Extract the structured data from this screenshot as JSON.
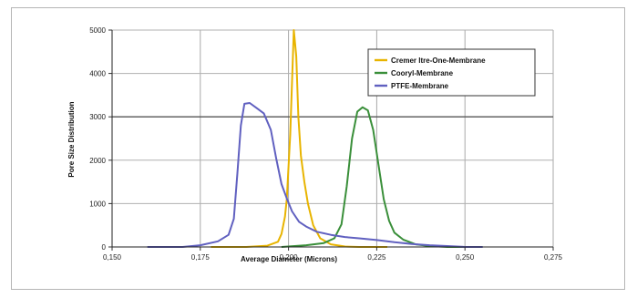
{
  "chart_data": {
    "type": "line",
    "xlabel": "Average Diameter (Microns)",
    "ylabel": "Pore Size Distribution",
    "xlim": [
      0.15,
      0.275
    ],
    "ylim": [
      0,
      5000
    ],
    "x_ticks": [
      "0,150",
      "0,175",
      "0,200",
      "0,225",
      "0,250",
      "0,275"
    ],
    "y_ticks": [
      "0",
      "1000",
      "2000",
      "3000",
      "4000",
      "5000"
    ],
    "grid": "vertical and horizontal gridlines",
    "legend_position": "top-right",
    "series": [
      {
        "name": "Cremer ltre-One-Membrane",
        "color": "#e8b400",
        "points": [
          [
            0.178,
            0
          ],
          [
            0.188,
            0
          ],
          [
            0.194,
            30
          ],
          [
            0.197,
            120
          ],
          [
            0.198,
            300
          ],
          [
            0.199,
            700
          ],
          [
            0.1995,
            1100
          ],
          [
            0.2005,
            2600
          ],
          [
            0.2015,
            5000
          ],
          [
            0.2022,
            4400
          ],
          [
            0.2028,
            3000
          ],
          [
            0.2035,
            2100
          ],
          [
            0.2045,
            1500
          ],
          [
            0.2055,
            1000
          ],
          [
            0.207,
            500
          ],
          [
            0.209,
            200
          ],
          [
            0.212,
            60
          ],
          [
            0.216,
            10
          ],
          [
            0.22,
            0
          ],
          [
            0.228,
            0
          ]
        ]
      },
      {
        "name": "Cooryl-Membrane",
        "color": "#3a8f3a",
        "points": [
          [
            0.198,
            0
          ],
          [
            0.205,
            40
          ],
          [
            0.21,
            90
          ],
          [
            0.213,
            200
          ],
          [
            0.215,
            520
          ],
          [
            0.2165,
            1400
          ],
          [
            0.218,
            2500
          ],
          [
            0.2195,
            3120
          ],
          [
            0.221,
            3220
          ],
          [
            0.2225,
            3150
          ],
          [
            0.224,
            2700
          ],
          [
            0.2255,
            1900
          ],
          [
            0.227,
            1100
          ],
          [
            0.2285,
            600
          ],
          [
            0.23,
            330
          ],
          [
            0.2325,
            170
          ],
          [
            0.236,
            60
          ],
          [
            0.24,
            20
          ],
          [
            0.245,
            0
          ],
          [
            0.255,
            0
          ]
        ]
      },
      {
        "name": "PTFE-Membrane",
        "color": "#6060c0",
        "points": [
          [
            0.16,
            0
          ],
          [
            0.17,
            0
          ],
          [
            0.175,
            40
          ],
          [
            0.18,
            130
          ],
          [
            0.183,
            280
          ],
          [
            0.1845,
            650
          ],
          [
            0.1855,
            1700
          ],
          [
            0.1865,
            2800
          ],
          [
            0.1875,
            3300
          ],
          [
            0.189,
            3320
          ],
          [
            0.191,
            3200
          ],
          [
            0.193,
            3080
          ],
          [
            0.195,
            2700
          ],
          [
            0.1965,
            2050
          ],
          [
            0.198,
            1450
          ],
          [
            0.1995,
            1120
          ],
          [
            0.201,
            820
          ],
          [
            0.203,
            580
          ],
          [
            0.205,
            470
          ],
          [
            0.208,
            350
          ],
          [
            0.212,
            280
          ],
          [
            0.216,
            230
          ],
          [
            0.22,
            200
          ],
          [
            0.225,
            160
          ],
          [
            0.23,
            110
          ],
          [
            0.235,
            70
          ],
          [
            0.24,
            40
          ],
          [
            0.245,
            20
          ],
          [
            0.25,
            0
          ],
          [
            0.255,
            0
          ]
        ]
      }
    ]
  }
}
